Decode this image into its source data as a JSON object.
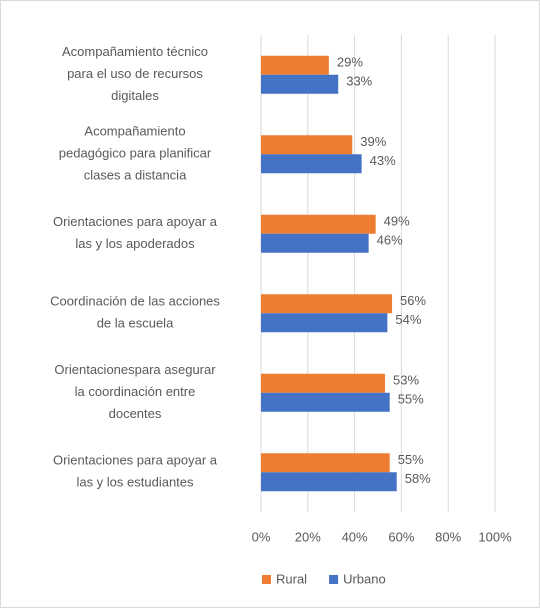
{
  "chart_data": {
    "type": "hbar",
    "categories": [
      "Acompañamiento técnico\npara el uso de recursos\ndigitales",
      "Acompañamiento\npedagógico  para planificar\nclases a distancia",
      "Orientaciones para apoyar a\nlas y los apoderados",
      "Coordinación de las acciones\nde la escuela",
      "Orientacionespara asegurar\nla coordinación entre\ndocentes",
      "Orientaciones para apoyar a\nlas y los estudiantes"
    ],
    "series": [
      {
        "name": "Rural",
        "color": "#ED7D31",
        "values": [
          29,
          39,
          49,
          56,
          53,
          55
        ],
        "value_labels": [
          "29%",
          "39%",
          "49%",
          "56%",
          "53%",
          "55%"
        ]
      },
      {
        "name": "Urbano",
        "color": "#4472C4",
        "values": [
          33,
          43,
          46,
          54,
          55,
          58
        ],
        "value_labels": [
          "33%",
          "43%",
          "46%",
          "54%",
          "55%",
          "58%"
        ]
      }
    ],
    "xlim": [
      0,
      100
    ],
    "xticks": [
      {
        "value": 0,
        "label": "0%"
      },
      {
        "value": 20,
        "label": "20%"
      },
      {
        "value": 40,
        "label": "40%"
      },
      {
        "value": 60,
        "label": "60%"
      },
      {
        "value": 80,
        "label": "80%"
      },
      {
        "value": 100,
        "label": "100%"
      }
    ],
    "grid": true,
    "legend": "bottom"
  }
}
